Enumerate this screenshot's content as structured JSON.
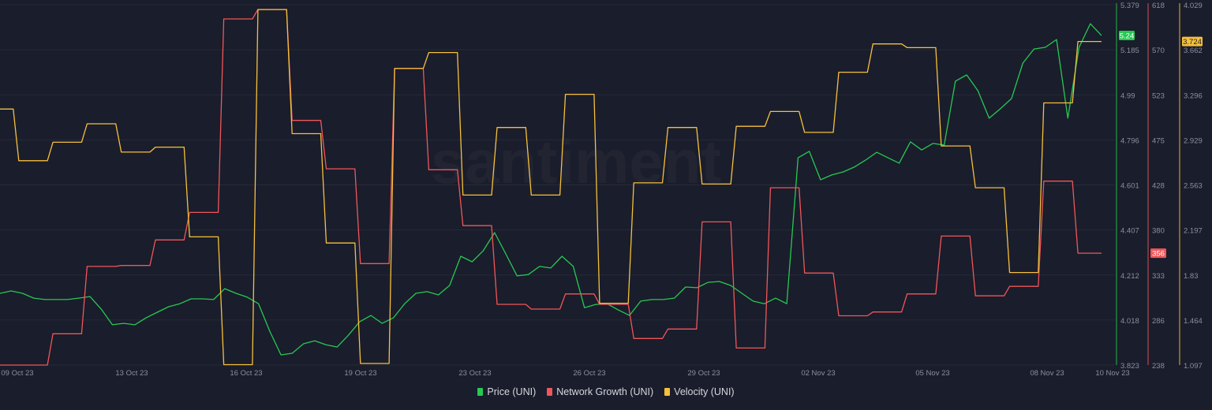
{
  "watermark": "santiment",
  "chart_data": {
    "type": "line",
    "x_range": [
      "09 Oct 23",
      "10 Nov 23"
    ],
    "x_tick_labels": [
      "09 Oct 23",
      "13 Oct 23",
      "16 Oct 23",
      "19 Oct 23",
      "23 Oct 23",
      "26 Oct 23",
      "29 Oct 23",
      "02 Nov 23",
      "05 Nov 23",
      "08 Nov 23",
      "10 Nov 23"
    ],
    "grid": "horizontal",
    "legend_placement": "bottom-center",
    "series": [
      {
        "name": "Price (UNI)",
        "color": "#26c953",
        "axis": "right-1",
        "interval": "8h",
        "ylim": [
          3.823,
          5.379
        ],
        "ticks": [
          "5.379",
          "5.185",
          "4.99",
          "4.796",
          "4.601",
          "4.407",
          "4.212",
          "4.018",
          "3.823"
        ],
        "last_value_label": "5.24",
        "values": [
          4.133,
          4.143,
          4.133,
          4.112,
          4.106,
          4.106,
          4.106,
          4.112,
          4.119,
          4.065,
          3.997,
          4.003,
          3.997,
          4.027,
          4.051,
          4.075,
          4.088,
          4.109,
          4.109,
          4.106,
          4.153,
          4.133,
          4.116,
          4.088,
          3.969,
          3.867,
          3.874,
          3.915,
          3.928,
          3.911,
          3.901,
          3.952,
          4.01,
          4.037,
          4.003,
          4.027,
          4.088,
          4.133,
          4.14,
          4.126,
          4.167,
          4.293,
          4.269,
          4.317,
          4.395,
          4.303,
          4.208,
          4.214,
          4.249,
          4.242,
          4.293,
          4.249,
          4.071,
          4.085,
          4.088,
          4.061,
          4.037,
          4.099,
          4.106,
          4.106,
          4.112,
          4.16,
          4.157,
          4.18,
          4.184,
          4.167,
          4.133,
          4.099,
          4.088,
          4.112,
          4.088,
          4.718,
          4.746,
          4.623,
          4.644,
          4.657,
          4.678,
          4.708,
          4.742,
          4.718,
          4.695,
          4.787,
          4.752,
          4.78,
          4.773,
          5.049,
          5.076,
          5.008,
          4.889,
          4.93,
          4.974,
          5.127,
          5.188,
          5.195,
          5.229,
          4.889,
          5.195,
          5.297,
          5.246
        ]
      },
      {
        "name": "Network Growth (UNI)",
        "color": "#f0565a",
        "axis": "right-2",
        "interval": "1d",
        "ylim": [
          238,
          618
        ],
        "ticks": [
          "618",
          "570",
          "523",
          "475",
          "428",
          "380",
          "333",
          "286",
          "238"
        ],
        "last_value_label": "356",
        "values": [
          238,
          238,
          271,
          342,
          343,
          370,
          399,
          603,
          613,
          496,
          445,
          345,
          551,
          444,
          385,
          302,
          297,
          313,
          302,
          266,
          276,
          389,
          256,
          425,
          335,
          290,
          294,
          313,
          374,
          311,
          321,
          432,
          356
        ]
      },
      {
        "name": "Velocity (UNI)",
        "color": "#f6c03c",
        "axis": "right-3",
        "interval": "1d",
        "ylim": [
          1.097,
          4.029
        ],
        "ticks": [
          "4.029",
          "3.662",
          "3.296",
          "2.929",
          "2.563",
          "2.197",
          "1.83",
          "1.464",
          "1.097"
        ],
        "last_value_label": "3.724",
        "values": [
          3.18,
          2.76,
          2.91,
          3.06,
          2.83,
          2.87,
          2.14,
          1.1,
          3.99,
          2.98,
          2.09,
          1.11,
          3.51,
          3.64,
          2.48,
          3.03,
          2.48,
          3.3,
          1.6,
          2.58,
          3.03,
          2.57,
          3.04,
          3.16,
          2.99,
          3.48,
          3.71,
          3.68,
          2.88,
          2.54,
          1.85,
          3.23,
          3.73
        ]
      }
    ]
  }
}
